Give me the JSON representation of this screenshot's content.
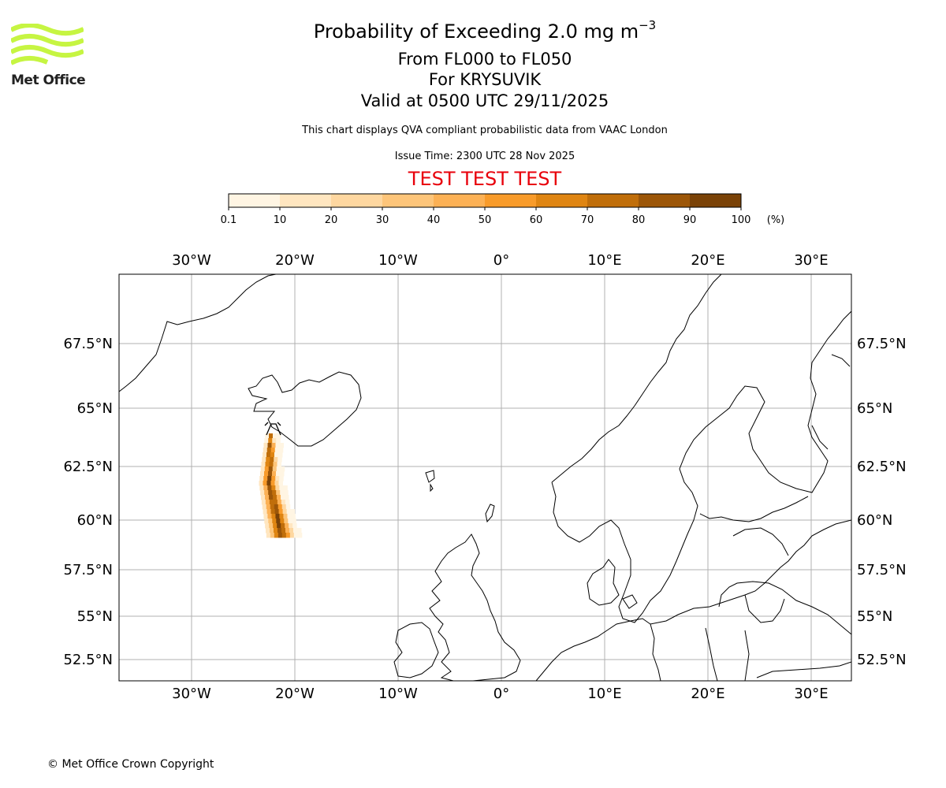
{
  "logo": {
    "text": "Met Office",
    "color": "#c6f542"
  },
  "header": {
    "title_prefix": "Probability of Exceeding 2.0 mg m",
    "title_exponent": "−3",
    "levels": "From FL000 to FL050",
    "volcano": "For KRYSUVIK",
    "valid": "Valid at 0500 UTC 29/11/2025",
    "note": "This chart displays QVA compliant probabilistic data from VAAC London",
    "issue": "Issue Time: 2300 UTC 28 Nov 2025",
    "test_banner": "TEST TEST TEST",
    "test_color": "#e8000b"
  },
  "colorbar": {
    "ticks": [
      "0.1",
      "10",
      "20",
      "30",
      "40",
      "50",
      "60",
      "70",
      "80",
      "90",
      "100"
    ],
    "unit": "(%)",
    "colors": [
      "#fff5e3",
      "#ffe6c0",
      "#fed7a0",
      "#fdc57a",
      "#fcb155",
      "#f89b2a",
      "#df8512",
      "#c06e0a",
      "#9c5608",
      "#7a4207"
    ]
  },
  "map": {
    "lon_labels": [
      "30°W",
      "20°W",
      "10°W",
      "0°",
      "10°E",
      "20°E",
      "30°E"
    ],
    "lon_values": [
      -30,
      -20,
      -10,
      0,
      10,
      20,
      30
    ],
    "lat_labels": [
      "67.5°N",
      "65°N",
      "62.5°N",
      "60°N",
      "57.5°N",
      "55°N",
      "52.5°N"
    ],
    "lat_values": [
      67.5,
      65,
      62.5,
      60,
      57.5,
      55,
      52.5
    ]
  },
  "footer": {
    "copyright": "© Met Office Crown Copyright"
  }
}
